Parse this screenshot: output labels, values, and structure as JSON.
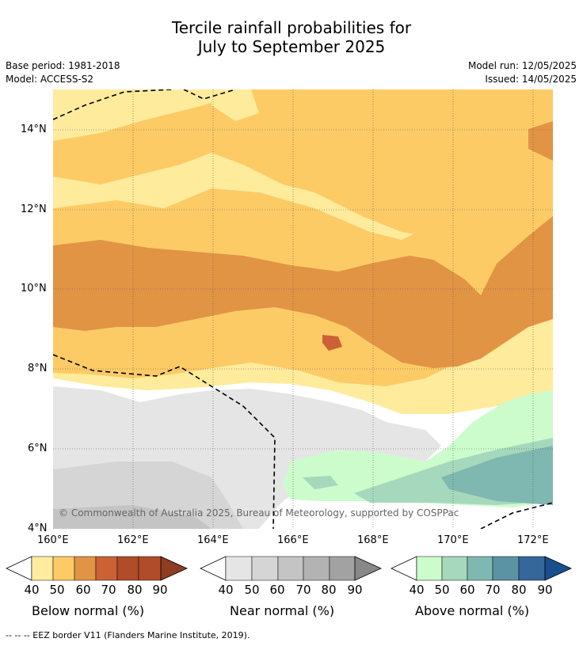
{
  "title_line1": "Tercile rainfall probabilities for",
  "title_line2": "July to September 2025",
  "base_period": "Base period: 1981-2018",
  "model": "Model: ACCESS-S2",
  "model_run": "Model run: 12/05/2025",
  "issued": "Issued: 14/05/2025",
  "lat_ticks": [
    "14°N",
    "12°N",
    "10°N",
    "8°N",
    "6°N",
    "4°N"
  ],
  "lon_ticks": [
    "160°E",
    "162°E",
    "164°E",
    "166°E",
    "168°E",
    "170°E",
    "172°E"
  ],
  "copyright": "© Commonwealth of Australia 2025, Bureau of Meteorology, supported by COSPPac",
  "colorbars": [
    {
      "label": "Below normal (%)",
      "ticks": [
        "40",
        "50",
        "60",
        "70",
        "80",
        "90"
      ],
      "colors": [
        "#ffec9f",
        "#fdcb66",
        "#e19444",
        "#cc6135",
        "#b04c2a",
        "#8e3c22"
      ]
    },
    {
      "label": "Near normal (%)",
      "ticks": [
        "40",
        "50",
        "60",
        "70",
        "80",
        "90"
      ],
      "colors": [
        "#e5e5e5",
        "#d5d5d5",
        "#c4c4c4",
        "#b3b3b3",
        "#a2a2a2",
        "#888888"
      ]
    },
    {
      "label": "Above normal (%)",
      "ticks": [
        "40",
        "50",
        "60",
        "70",
        "80",
        "90"
      ],
      "colors": [
        "#ccfccc",
        "#a5d8bc",
        "#7fb8b0",
        "#5b92a4",
        "#35679a",
        "#1a4f8e"
      ]
    }
  ],
  "footer": "--  --  -- EEZ border V11 (Flanders Marine Institute, 2019)."
}
